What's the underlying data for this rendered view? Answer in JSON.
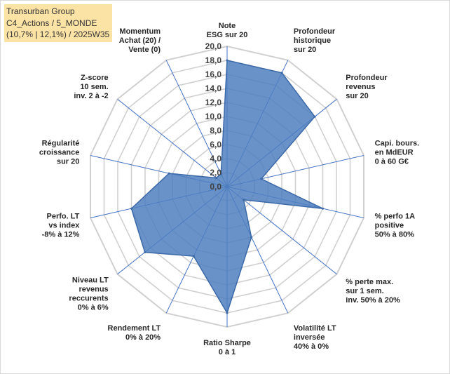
{
  "info_box": {
    "line1": "Transurban Group",
    "line2": "C4_Actions / 5_MONDE",
    "line3": "(10,7% | 12,1%) / 2025W35"
  },
  "chart_data": {
    "type": "radar",
    "scale": {
      "min": 0,
      "max": 20,
      "step": 2
    },
    "tick_labels": [
      "0,0",
      "2,0",
      "4,0",
      "6,0",
      "8,0",
      "10,0",
      "12,0",
      "14,0",
      "16,0",
      "18,0",
      "20,0"
    ],
    "grid": true,
    "axes": [
      {
        "label": [
          "Note",
          "ESG sur 20"
        ],
        "value": 18.0
      },
      {
        "label": [
          "Profondeur",
          "historique",
          "sur 20"
        ],
        "value": 18.0
      },
      {
        "label": [
          "Profondeur",
          "revenus",
          "sur 20"
        ],
        "value": 16.0
      },
      {
        "label": [
          "Capi. bours.",
          "en MdEUR",
          "0 à 60 G€"
        ],
        "value": 5.0
      },
      {
        "label": [
          "% perfo 1A",
          "positive",
          "50% à 80%"
        ],
        "value": 14.0
      },
      {
        "label": [
          "% perte max.",
          "sur 1 sem.",
          "inv. 50% à 20%"
        ],
        "value": 3.0
      },
      {
        "label": [
          "Volatilité LT",
          "inversée",
          "40% à 0%"
        ],
        "value": 8.0
      },
      {
        "label": [
          "Ratio Sharpe",
          "0 à 1"
        ],
        "value": 18.0
      },
      {
        "label": [
          "Rendement LT",
          "0% à 20%"
        ],
        "value": 11.0
      },
      {
        "label": [
          "Niveau LT",
          "revenus",
          "reccurents",
          "0% à 6%"
        ],
        "value": 15.0
      },
      {
        "label": [
          "Perfo. LT",
          "vs index",
          "-8% à 12%"
        ],
        "value": 14.0
      },
      {
        "label": [
          "Régularité",
          "croissance",
          "sur 20"
        ],
        "value": 8.5
      },
      {
        "label": [
          "Z-score",
          "10 sem.",
          "inv. 2 à -2"
        ],
        "value": 2.0
      },
      {
        "label": [
          "Momentum",
          "Achat (20) /",
          "Vente (0)"
        ],
        "value": 2.0
      }
    ],
    "colors": {
      "fill": "#4f7fbf",
      "stroke": "#3b68a8",
      "grid": "#d0d0d0",
      "spoke": "#4472c4"
    }
  }
}
